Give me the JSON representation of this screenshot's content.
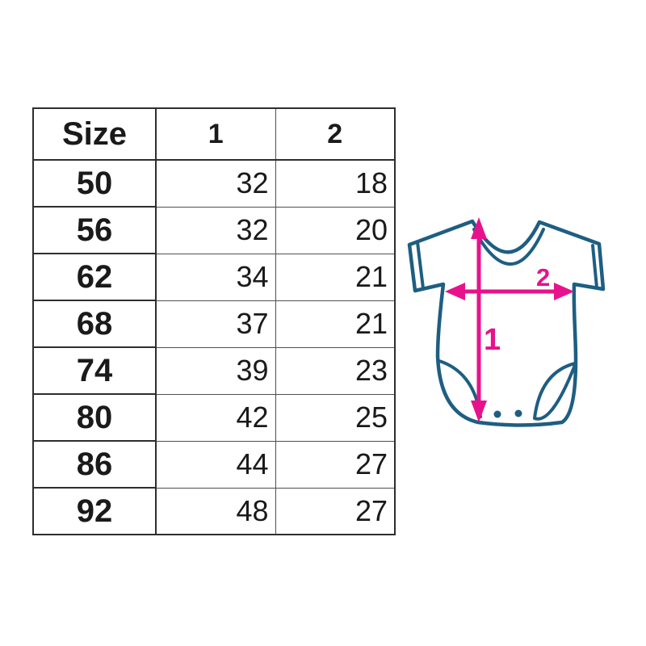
{
  "colors": {
    "accent_pink": "#e7128b",
    "outline_teal": "#1e5e82",
    "table_border_dark": "#2e2e2e",
    "table_border_light": "#4f4f4f",
    "text": "#1a1a1a"
  },
  "chart_data": {
    "type": "table",
    "columns": [
      "Size",
      "1",
      "2"
    ],
    "rows": [
      [
        "50",
        "32",
        "18"
      ],
      [
        "56",
        "32",
        "20"
      ],
      [
        "62",
        "34",
        "21"
      ],
      [
        "68",
        "37",
        "21"
      ],
      [
        "74",
        "39",
        "23"
      ],
      [
        "80",
        "42",
        "25"
      ],
      [
        "86",
        "44",
        "27"
      ],
      [
        "92",
        "48",
        "27"
      ]
    ]
  },
  "figure": {
    "name": "baby-bodysuit-measurement-diagram",
    "label_1": "1",
    "label_2": "2"
  }
}
